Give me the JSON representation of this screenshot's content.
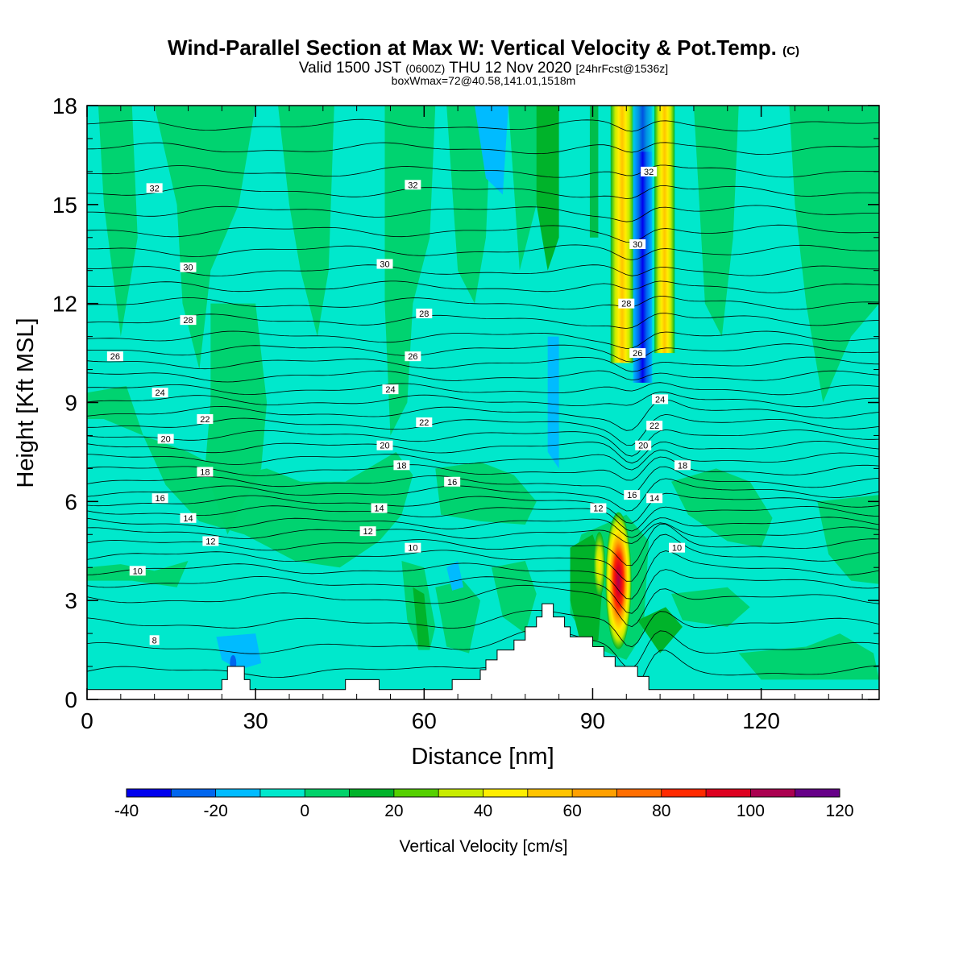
{
  "chart_data": {
    "type": "heatmap",
    "title": {
      "main": "Wind-Parallel Section at Max W: Vertical Velocity & Pot.Temp.",
      "copyright": "(C)"
    },
    "subtitle": {
      "valid_prefix": "Valid 1500 JST",
      "utc": "(0600Z)",
      "valid_suffix": "THU 12 Nov 2020",
      "forecast": "[24hrFcst@1536z]",
      "box": "boxWmax=72@40.58,141.01,1518m"
    },
    "xlabel": "Distance [nm]",
    "ylabel": "Height [Kft MSL]",
    "xlim": [
      0,
      141
    ],
    "ylim": [
      0,
      18
    ],
    "x_ticks": [
      0,
      30,
      60,
      90,
      120
    ],
    "y_ticks": [
      0,
      3,
      6,
      9,
      12,
      15,
      18
    ],
    "colorbar": {
      "label": "Vertical Velocity [cm/s]",
      "tick_labels": [
        "-40",
        "-20",
        "0",
        "20",
        "40",
        "60",
        "80",
        "100",
        "120"
      ],
      "bounds": [
        -40,
        -30,
        -20,
        -10,
        0,
        10,
        20,
        30,
        40,
        50,
        60,
        70,
        80,
        90,
        100,
        110,
        120
      ],
      "colors": [
        "#0000ee",
        "#0066ee",
        "#00bbff",
        "#00e8cc",
        "#00d26a",
        "#00b32a",
        "#55d000",
        "#c8ec00",
        "#ffee00",
        "#ffc400",
        "#ffa000",
        "#ff6e00",
        "#ff2a00",
        "#dd0020",
        "#aa0050",
        "#660088"
      ]
    },
    "background_color": "#00e8cc",
    "terrain": [
      [
        0,
        0.3
      ],
      [
        24,
        0.3
      ],
      [
        24,
        0.6
      ],
      [
        25,
        0.6
      ],
      [
        25,
        1.0
      ],
      [
        28,
        1.0
      ],
      [
        28,
        0.6
      ],
      [
        29,
        0.6
      ],
      [
        29,
        0.3
      ],
      [
        46,
        0.3
      ],
      [
        46,
        0.6
      ],
      [
        52,
        0.6
      ],
      [
        52,
        0.3
      ],
      [
        65,
        0.3
      ],
      [
        65,
        0.6
      ],
      [
        70,
        0.6
      ],
      [
        70,
        0.9
      ],
      [
        71,
        0.9
      ],
      [
        71,
        1.2
      ],
      [
        73,
        1.2
      ],
      [
        73,
        1.5
      ],
      [
        76,
        1.5
      ],
      [
        76,
        1.8
      ],
      [
        78,
        1.8
      ],
      [
        78,
        2.2
      ],
      [
        80,
        2.2
      ],
      [
        80,
        2.5
      ],
      [
        81,
        2.5
      ],
      [
        81,
        2.9
      ],
      [
        83,
        2.9
      ],
      [
        83,
        2.5
      ],
      [
        85,
        2.5
      ],
      [
        85,
        2.2
      ],
      [
        86,
        2.2
      ],
      [
        86,
        1.9
      ],
      [
        90,
        1.9
      ],
      [
        90,
        1.6
      ],
      [
        92,
        1.6
      ],
      [
        92,
        1.3
      ],
      [
        94,
        1.3
      ],
      [
        94,
        1.0
      ],
      [
        98,
        1.0
      ],
      [
        98,
        0.7
      ],
      [
        100,
        0.7
      ],
      [
        100,
        0.3
      ],
      [
        141,
        0.3
      ]
    ],
    "theta_labels": [
      {
        "text": "32",
        "x": 12,
        "y": 15.5
      },
      {
        "text": "32",
        "x": 58,
        "y": 15.6
      },
      {
        "text": "32",
        "x": 100,
        "y": 16.0
      },
      {
        "text": "30",
        "x": 18,
        "y": 13.1
      },
      {
        "text": "30",
        "x": 53,
        "y": 13.2
      },
      {
        "text": "30",
        "x": 98,
        "y": 13.8
      },
      {
        "text": "28",
        "x": 18,
        "y": 11.5
      },
      {
        "text": "28",
        "x": 60,
        "y": 11.7
      },
      {
        "text": "28",
        "x": 96,
        "y": 12.0
      },
      {
        "text": "26",
        "x": 5,
        "y": 10.4
      },
      {
        "text": "26",
        "x": 58,
        "y": 10.4
      },
      {
        "text": "26",
        "x": 98,
        "y": 10.5
      },
      {
        "text": "24",
        "x": 13,
        "y": 9.3
      },
      {
        "text": "24",
        "x": 54,
        "y": 9.4
      },
      {
        "text": "24",
        "x": 102,
        "y": 9.1
      },
      {
        "text": "22",
        "x": 21,
        "y": 8.5
      },
      {
        "text": "22",
        "x": 60,
        "y": 8.4
      },
      {
        "text": "22",
        "x": 101,
        "y": 8.3
      },
      {
        "text": "20",
        "x": 14,
        "y": 7.9
      },
      {
        "text": "20",
        "x": 53,
        "y": 7.7
      },
      {
        "text": "20",
        "x": 99,
        "y": 7.7
      },
      {
        "text": "18",
        "x": 21,
        "y": 6.9
      },
      {
        "text": "18",
        "x": 56,
        "y": 7.1
      },
      {
        "text": "18",
        "x": 106,
        "y": 7.1
      },
      {
        "text": "16",
        "x": 13,
        "y": 6.1
      },
      {
        "text": "16",
        "x": 65,
        "y": 6.6
      },
      {
        "text": "16",
        "x": 97,
        "y": 6.2
      },
      {
        "text": "14",
        "x": 18,
        "y": 5.5
      },
      {
        "text": "14",
        "x": 52,
        "y": 5.8
      },
      {
        "text": "14",
        "x": 101,
        "y": 6.1
      },
      {
        "text": "12",
        "x": 22,
        "y": 4.8
      },
      {
        "text": "12",
        "x": 50,
        "y": 5.1
      },
      {
        "text": "12",
        "x": 91,
        "y": 5.8
      },
      {
        "text": "10",
        "x": 9,
        "y": 3.9
      },
      {
        "text": "10",
        "x": 58,
        "y": 4.6
      },
      {
        "text": "10",
        "x": 105,
        "y": 4.6
      },
      {
        "text": "8",
        "x": 12,
        "y": 1.8
      }
    ]
  }
}
